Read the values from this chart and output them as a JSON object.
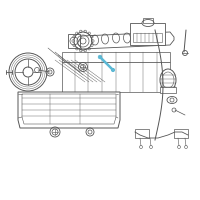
{
  "bg_color": "#ffffff",
  "highlight_color": "#5bb8d4",
  "line_color": "#555555",
  "fig_width": 2.0,
  "fig_height": 2.0,
  "dpi": 100
}
